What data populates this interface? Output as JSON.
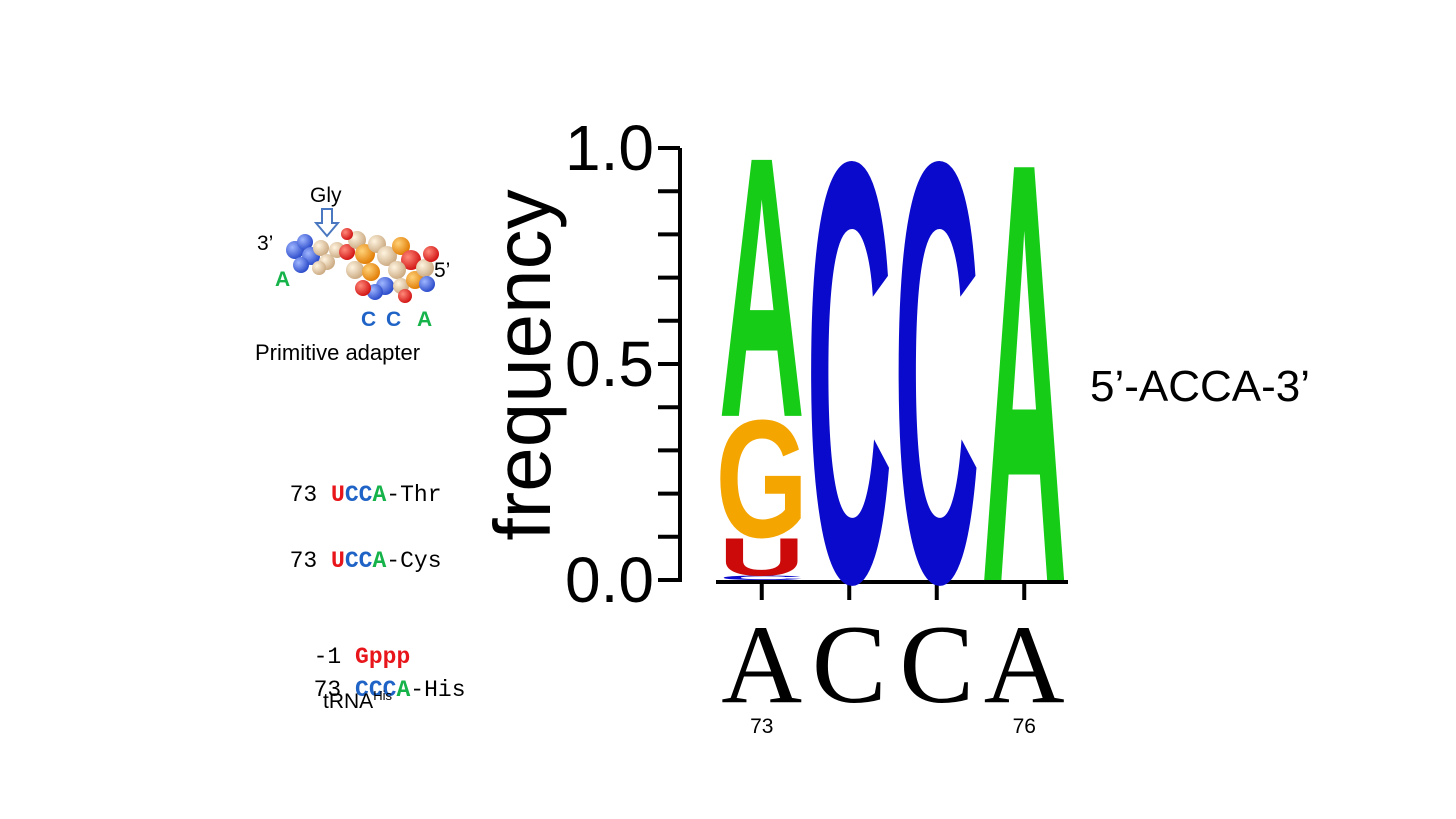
{
  "adapter": {
    "gly_label": "Gly",
    "three_prime": "3’",
    "five_prime": "5’",
    "left_base": "A",
    "bottom_bases": [
      "C",
      "C",
      "A"
    ],
    "caption": "Primitive adapter"
  },
  "sequences": [
    {
      "pos": "73",
      "parts": [
        {
          "t": "U",
          "c": "red"
        },
        {
          "t": "C",
          "c": "blue"
        },
        {
          "t": "C",
          "c": "blue"
        },
        {
          "t": "A",
          "c": "green"
        }
      ],
      "suffix": "-Thr"
    },
    {
      "pos": "73",
      "parts": [
        {
          "t": "U",
          "c": "red"
        },
        {
          "t": "C",
          "c": "blue"
        },
        {
          "t": "C",
          "c": "blue"
        },
        {
          "t": "A",
          "c": "green"
        }
      ],
      "suffix": "-Cys"
    }
  ],
  "his": {
    "line1_pos": "-1",
    "line1_seq": "Gppp",
    "line2_pos": "73",
    "line2_parts": [
      {
        "t": "C",
        "c": "blue"
      },
      {
        "t": "C",
        "c": "blue"
      },
      {
        "t": "C",
        "c": "blue"
      },
      {
        "t": "A",
        "c": "green"
      }
    ],
    "line2_suffix": "-His",
    "trna": "tRNA",
    "trna_sup": "His"
  },
  "side_label": "5’-ACCA-3’",
  "colors": {
    "A": "#16cc16",
    "C": "#0a0acc",
    "G": "#f5a500",
    "U": "#cc0a0a"
  },
  "chart_data": {
    "type": "sequence-logo",
    "ylabel": "frequency",
    "ylim": [
      0,
      1
    ],
    "yticks": [
      "0.0",
      "0.5",
      "1.0"
    ],
    "positions": [
      {
        "label": "A",
        "number": "73",
        "stack": [
          {
            "base": "C",
            "freq": 0.01
          },
          {
            "base": "U",
            "freq": 0.09
          },
          {
            "base": "G",
            "freq": 0.28
          },
          {
            "base": "A",
            "freq": 0.62
          }
        ]
      },
      {
        "label": "C",
        "number": "",
        "stack": [
          {
            "base": "C",
            "freq": 1.0
          }
        ]
      },
      {
        "label": "C",
        "number": "",
        "stack": [
          {
            "base": "C",
            "freq": 1.0
          }
        ]
      },
      {
        "label": "A",
        "number": "76",
        "stack": [
          {
            "base": "A",
            "freq": 1.0
          }
        ]
      }
    ]
  }
}
